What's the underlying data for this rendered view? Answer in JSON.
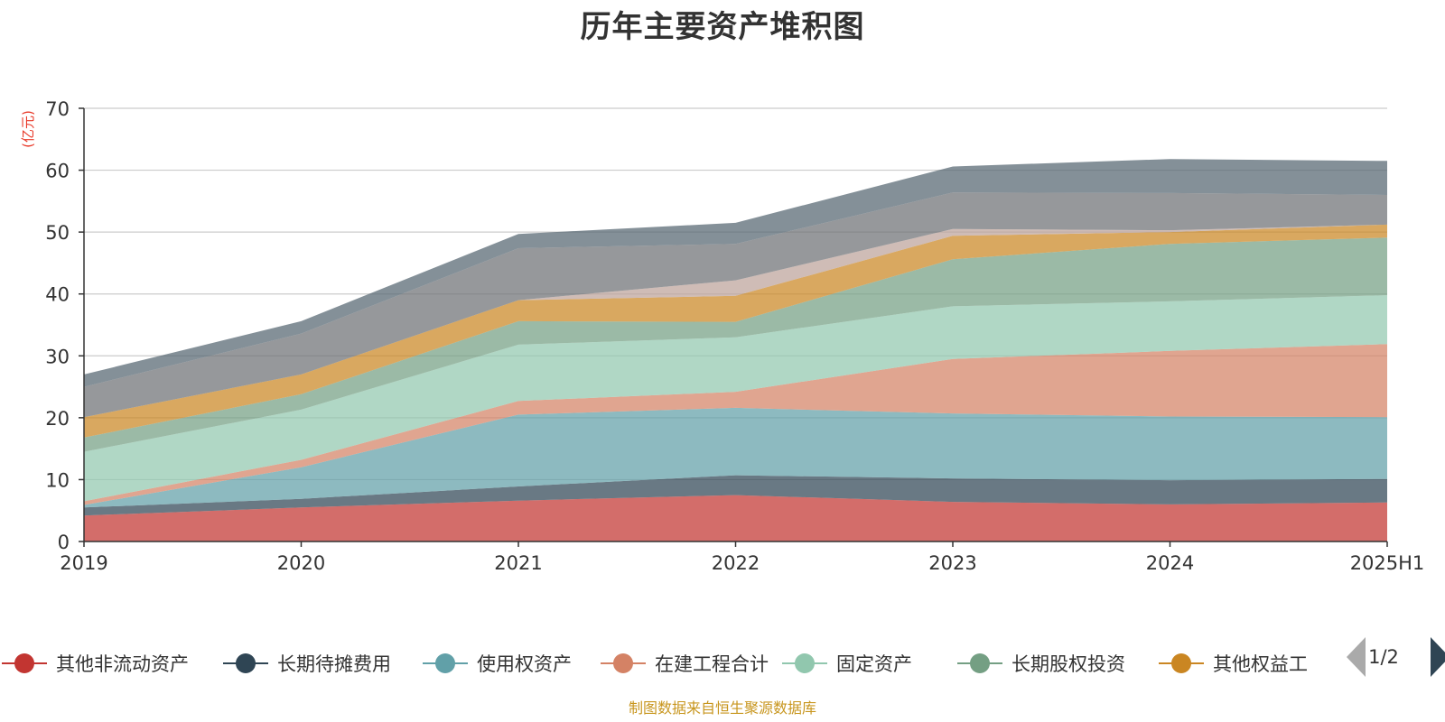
{
  "chart_data": {
    "type": "area",
    "stacked": true,
    "title": "历年主要资产堆积图",
    "unit_label": "(亿元)",
    "categories": [
      "2019",
      "2020",
      "2021",
      "2022",
      "2023",
      "2024",
      "2025H1"
    ],
    "ylim": [
      0,
      70
    ],
    "yticks": [
      0,
      10,
      20,
      30,
      40,
      50,
      60,
      70
    ],
    "grid": true,
    "series": [
      {
        "name": "其他非流动资产",
        "color": "#c23531",
        "values": [
          4.2,
          5.5,
          6.6,
          7.5,
          6.4,
          6.0,
          6.3
        ]
      },
      {
        "name": "长期待摊费用",
        "color": "#2f4554",
        "values": [
          1.3,
          1.4,
          2.3,
          3.2,
          3.8,
          3.9,
          3.8
        ]
      },
      {
        "name": "使用权资产",
        "color": "#61a0a8",
        "values": [
          0.4,
          5.1,
          11.6,
          10.9,
          10.5,
          10.3,
          10.0
        ]
      },
      {
        "name": "在建工程合计",
        "color": "#d48265",
        "values": [
          0.6,
          1.2,
          2.2,
          2.6,
          8.8,
          10.6,
          11.8
        ]
      },
      {
        "name": "固定资产",
        "color": "#91c7ae",
        "values": [
          8.0,
          8.1,
          9.1,
          8.8,
          8.5,
          8.0,
          7.9
        ]
      },
      {
        "name": "长期股权投资",
        "color": "#749f83",
        "values": [
          2.3,
          2.5,
          3.8,
          2.5,
          7.6,
          9.3,
          9.3
        ]
      },
      {
        "name": "其他权益工",
        "color": "#ca8622",
        "values": [
          3.3,
          3.2,
          3.4,
          4.2,
          3.8,
          1.9,
          2.1
        ]
      },
      {
        "name": "",
        "color": "#bda29a",
        "values": [
          0.0,
          0.0,
          0.0,
          2.5,
          1.1,
          0.3,
          0.0
        ]
      },
      {
        "name": "",
        "color": "#6e7074",
        "values": [
          4.9,
          6.6,
          8.4,
          5.9,
          5.9,
          6.0,
          4.8
        ]
      },
      {
        "name": "",
        "color": "#546570",
        "values": [
          2.0,
          2.0,
          2.3,
          3.4,
          4.2,
          5.5,
          5.5
        ]
      }
    ],
    "legend_position": "bottom"
  },
  "legend": {
    "page_indicator": "1/2",
    "prev_icon": "triangle-left-icon",
    "next_icon": "triangle-right-icon"
  },
  "source_note": "制图数据来自恒生聚源数据库"
}
